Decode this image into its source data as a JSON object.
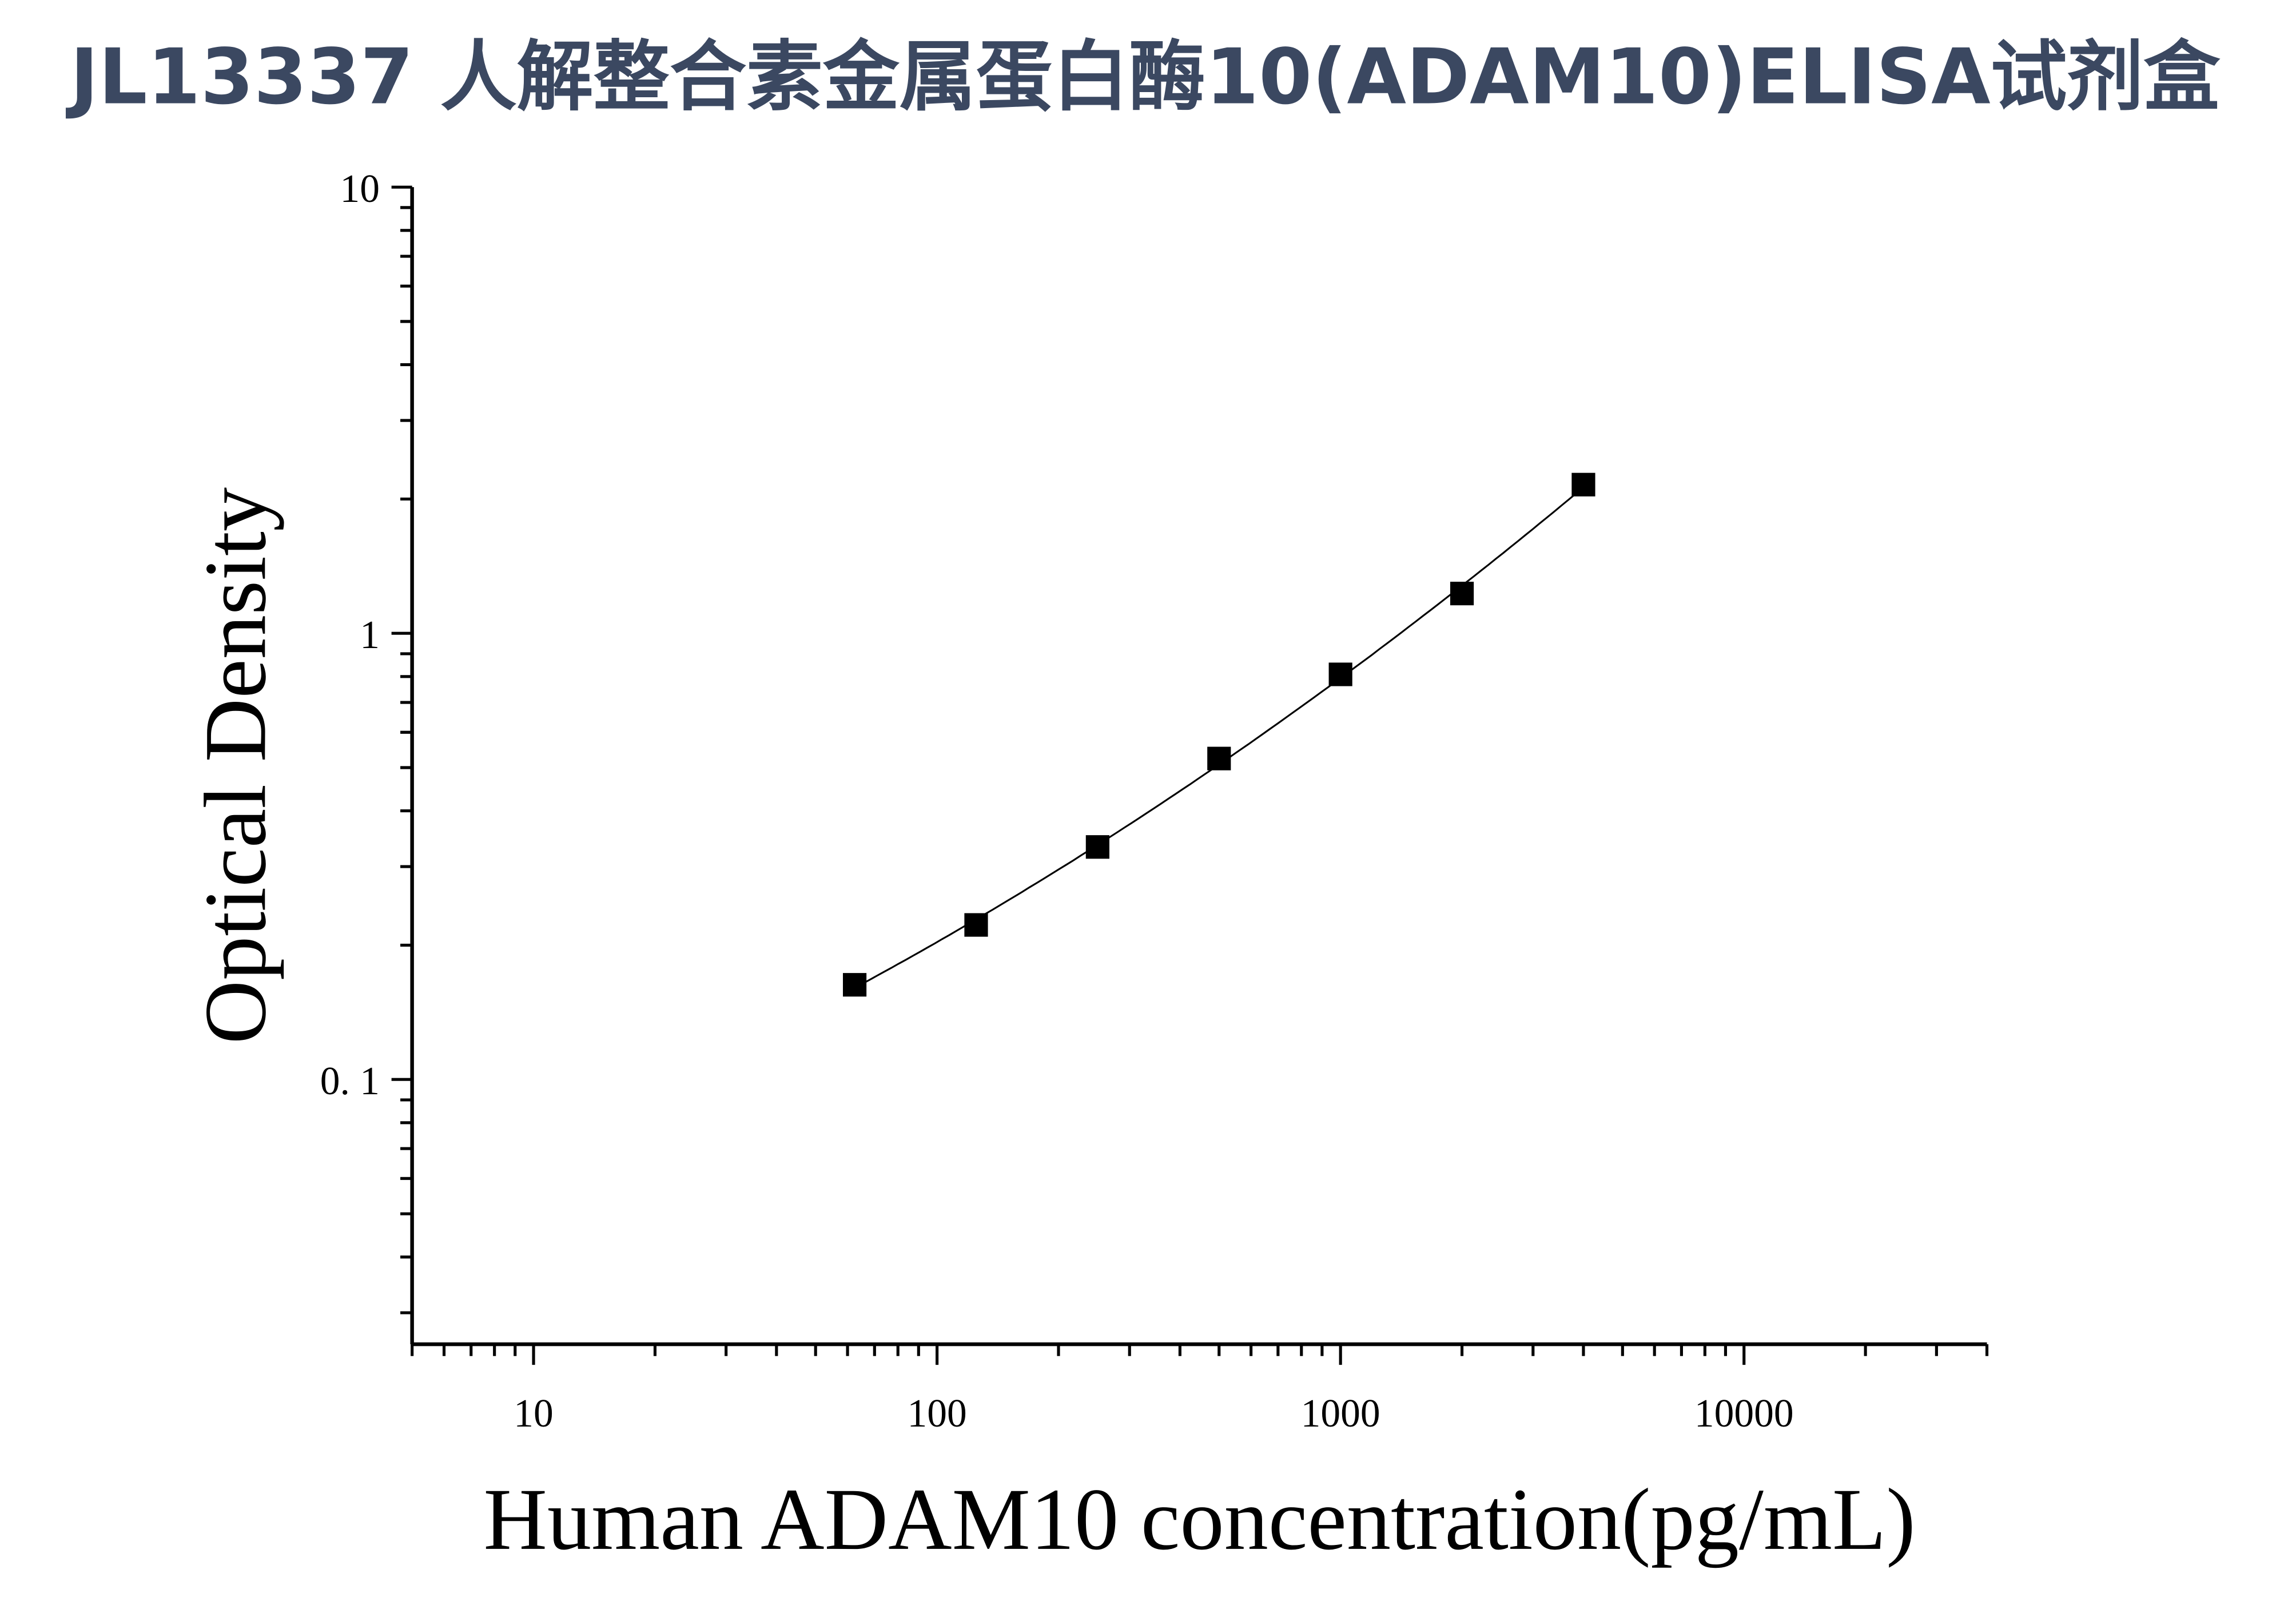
{
  "chart_data": {
    "type": "scatter",
    "title": "JL13337 人解整合素金属蛋白酶10(ADAM10)ELISA试剂盒",
    "xlabel": "Human ADAM10 concentration(pg/mL)",
    "ylabel": "Optical Density",
    "x_scale": "log",
    "y_scale": "log",
    "xlim": [
      5,
      40000
    ],
    "ylim": [
      0.0255,
      10
    ],
    "x_ticks": [
      {
        "value": 10,
        "label": "10"
      },
      {
        "value": 100,
        "label": "100"
      },
      {
        "value": 1000,
        "label": "1000"
      },
      {
        "value": 10000,
        "label": "10000"
      }
    ],
    "y_ticks": [
      {
        "value": 0.1,
        "label": "0. 1"
      },
      {
        "value": 1,
        "label": "1"
      },
      {
        "value": 10,
        "label": "10"
      }
    ],
    "grid": false,
    "marker": "square",
    "fit_curve": true,
    "color": "#000000",
    "title_color": "#3b4861",
    "x": [
      62.5,
      125,
      250,
      500,
      1000,
      2000,
      4000
    ],
    "y": [
      0.163,
      0.222,
      0.332,
      0.524,
      0.809,
      1.228,
      2.154
    ]
  }
}
